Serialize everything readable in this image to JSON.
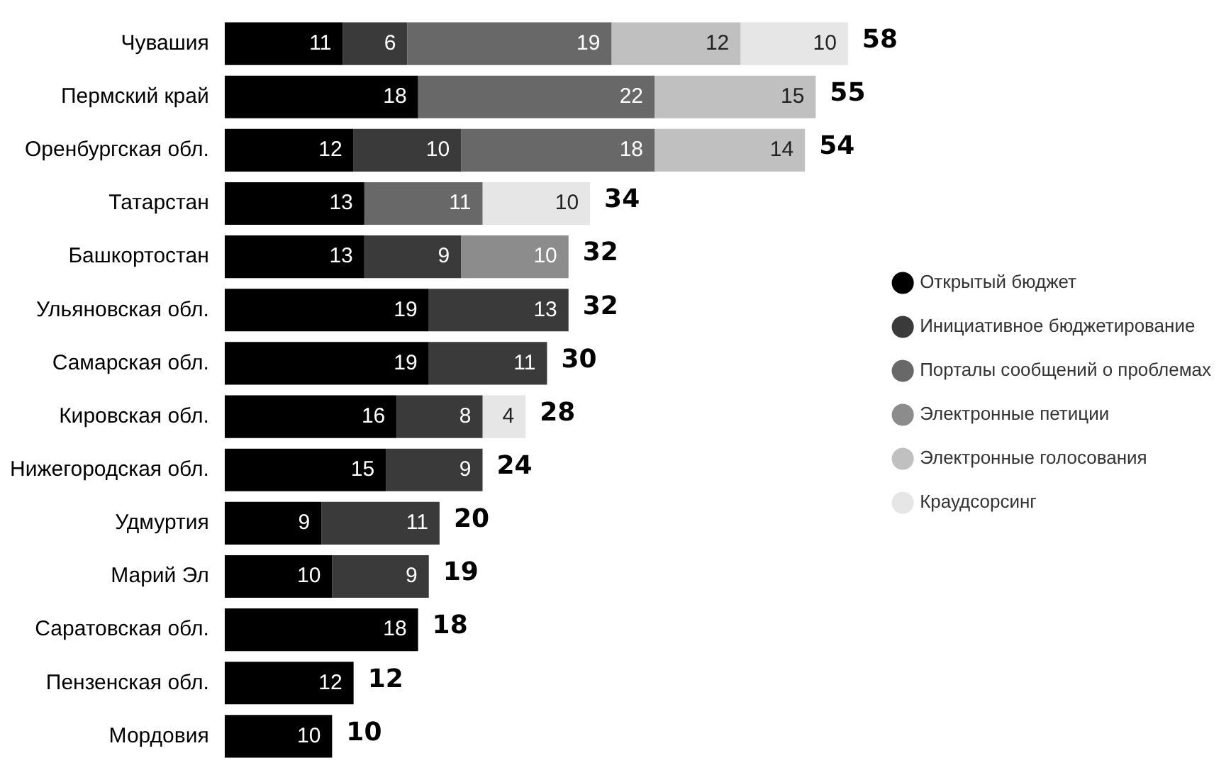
{
  "chart_data": {
    "type": "bar",
    "orientation": "horizontal",
    "stacked": true,
    "data_labels": true,
    "legend": "right",
    "tick_labels": "y",
    "categories": [
      "Чувашия",
      "Пермский край",
      "Оренбургская обл.",
      "Татарстан",
      "Башкортостан",
      "Ульяновская обл.",
      "Самарская обл.",
      "Кировская обл.",
      "Нижегородская обл.",
      "Удмуртия",
      "Марий Эл",
      "Саратовская обл.",
      "Пензенская обл.",
      "Мордовия"
    ],
    "series": [
      {
        "name": "Открытый бюджет",
        "color": "#000000",
        "values": [
          11,
          18,
          12,
          13,
          13,
          19,
          19,
          16,
          15,
          9,
          10,
          18,
          12,
          10
        ]
      },
      {
        "name": "Инициативное бюджетирование",
        "color": "#3a3a3a",
        "values": [
          6,
          null,
          10,
          null,
          9,
          13,
          11,
          8,
          9,
          11,
          9,
          null,
          null,
          null
        ]
      },
      {
        "name": "Порталы сообщений о проблемах",
        "color": "#686868",
        "values": [
          19,
          22,
          18,
          11,
          null,
          null,
          null,
          null,
          null,
          null,
          null,
          null,
          null,
          null
        ]
      },
      {
        "name": "Электронные петиции",
        "color": "#8c8c8c",
        "values": [
          null,
          null,
          null,
          null,
          10,
          null,
          null,
          null,
          null,
          null,
          null,
          null,
          null,
          null
        ]
      },
      {
        "name": "Электронные голосования",
        "color": "#c0c0c0",
        "values": [
          12,
          15,
          14,
          null,
          null,
          null,
          null,
          null,
          null,
          null,
          null,
          null,
          null,
          null
        ]
      },
      {
        "name": "Краудсорсинг",
        "color": "#e6e6e6",
        "values": [
          10,
          null,
          null,
          10,
          null,
          null,
          null,
          4,
          null,
          null,
          null,
          null,
          null,
          null
        ]
      }
    ],
    "totals": [
      "58",
      "55",
      "54",
      "34",
      "32",
      "32",
      "30",
      "28",
      "24",
      "20",
      "19",
      "18",
      "12",
      "10"
    ]
  }
}
